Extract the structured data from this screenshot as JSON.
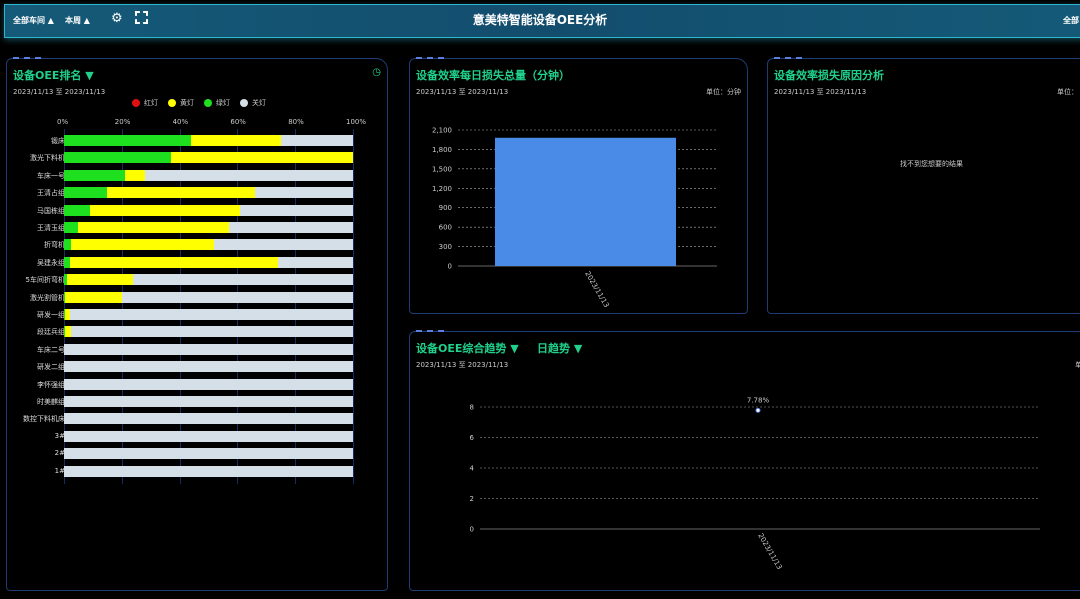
{
  "header": {
    "title": "意美特智能设备OEE分析",
    "workshop": "全部车间 ▲",
    "period": "本周 ▲",
    "right_label": "全部"
  },
  "ranking": {
    "title": "设备OEE排名 ▼",
    "date": "2023/11/13 至 2023/11/13",
    "legend": [
      {
        "label": "红灯",
        "color": "#e01010"
      },
      {
        "label": "黄灯",
        "color": "#ffff00"
      },
      {
        "label": "绿灯",
        "color": "#1ee01e"
      },
      {
        "label": "关灯",
        "color": "#d5dfe8"
      }
    ],
    "ticks": [
      "0%",
      "20%",
      "40%",
      "60%",
      "80%",
      "100%"
    ]
  },
  "loss": {
    "title": "设备效率每日损失总量（分钟）",
    "date": "2023/11/13 至 2023/11/13",
    "unit": "单位：分钟"
  },
  "reason": {
    "title": "设备效率损失原因分析",
    "date": "2023/11/13 至 2023/11/13",
    "unit": "单位：",
    "empty": "找不到您想要的结果"
  },
  "trend": {
    "title": "设备OEE综合趋势 ▼",
    "mode": "日趋势 ▼",
    "date": "2023/11/13 至 2023/11/13",
    "unit": "单"
  },
  "chart_data": [
    {
      "type": "bar",
      "orientation": "horizontal",
      "stacked": true,
      "xlim": [
        0,
        100
      ],
      "categories": [
        "锻床",
        "激光下料机",
        "车床一号",
        "王清占组",
        "马国栋组",
        "王清玉组",
        "折弯机",
        "吴建永组",
        "5车间折弯机",
        "激光割管机",
        "研发一组",
        "段廷兵组",
        "车床二号",
        "研发二组",
        "李怀强组",
        "时美麒组",
        "数控下料机床",
        "3#",
        "2#",
        "1#"
      ],
      "series": [
        {
          "name": "绿灯",
          "values": [
            44,
            37,
            21,
            15,
            9,
            5,
            2.5,
            2,
            1,
            0.5,
            0.5,
            0.5,
            0,
            0,
            0,
            0,
            0,
            0,
            0,
            0
          ]
        },
        {
          "name": "黄灯",
          "values": [
            31,
            63,
            7,
            51,
            52,
            52,
            49.5,
            72,
            23,
            19.5,
            1.5,
            2,
            0,
            0,
            0,
            0,
            0,
            0,
            0,
            0
          ]
        },
        {
          "name": "红灯",
          "values": [
            0,
            0,
            0,
            0,
            0,
            0,
            0,
            0,
            0,
            0,
            0,
            0,
            0,
            0,
            0,
            0,
            0,
            0,
            0,
            0
          ]
        },
        {
          "name": "关灯",
          "values": [
            25,
            0,
            72,
            34,
            39,
            43,
            48,
            26,
            76,
            80,
            98,
            97.5,
            100,
            100,
            100,
            100,
            100,
            100,
            100,
            100
          ]
        }
      ]
    },
    {
      "type": "bar",
      "categories": [
        "2023/11/13"
      ],
      "values": [
        1980
      ],
      "ylim": [
        0,
        2100
      ],
      "yticks": [
        "0",
        "300",
        "600",
        "900",
        "1,200",
        "1,500",
        "1,800",
        "2,100"
      ],
      "color": "#4a8be8",
      "grid": true
    },
    {
      "type": "line",
      "x": [
        "2023/11/13"
      ],
      "values": [
        7.78
      ],
      "labels": [
        "7.78%"
      ],
      "ylim": [
        0,
        8
      ],
      "yticks": [
        "0",
        "2",
        "4",
        "6",
        "8"
      ],
      "grid": true
    }
  ]
}
